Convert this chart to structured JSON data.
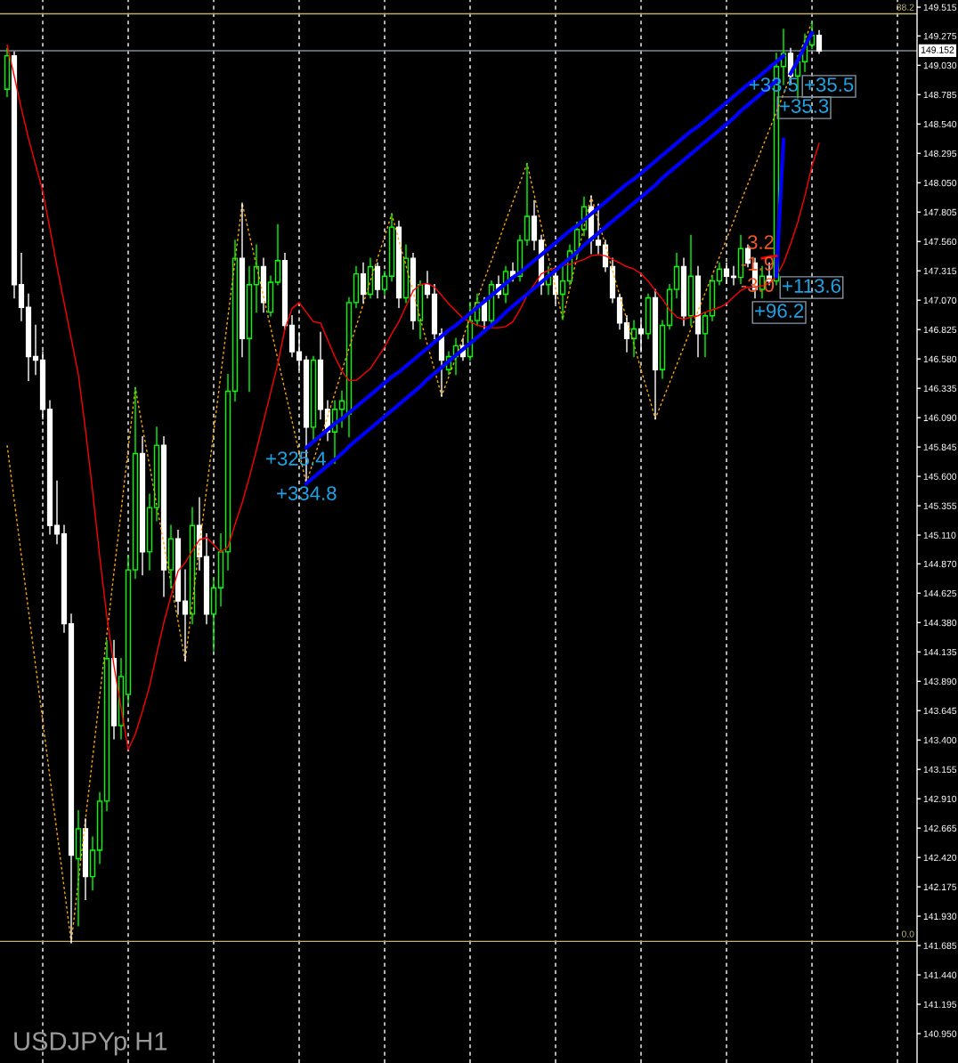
{
  "chart_data": {
    "type": "candlestick",
    "title": "USDJPYp H1",
    "categories": [
      null,
      null,
      null,
      null,
      null,
      null,
      null,
      null,
      null,
      null,
      null,
      null,
      null,
      null,
      null,
      null,
      null,
      null,
      null,
      null,
      null,
      null,
      null,
      null,
      null,
      null,
      null,
      null,
      null,
      null,
      null,
      null,
      null,
      null,
      null,
      null,
      null,
      null,
      null,
      null,
      null,
      null,
      null,
      null,
      null,
      null,
      null,
      null,
      null,
      null,
      null,
      null,
      null,
      null,
      null,
      null,
      null,
      null,
      null,
      null,
      null,
      null,
      null,
      null,
      null,
      null,
      null,
      null,
      null,
      null,
      null,
      null,
      null,
      null,
      null,
      null,
      null,
      null,
      null,
      null,
      null,
      null,
      null,
      null,
      null,
      null,
      null,
      null,
      null,
      null,
      null,
      null,
      null,
      null,
      null,
      null,
      null,
      null,
      null,
      null,
      null,
      null,
      null,
      null,
      null,
      null,
      null,
      null,
      null,
      null,
      null,
      null,
      null,
      null,
      null
    ],
    "ohlc": [
      [
        148.83,
        149.17,
        148.77,
        149.11
      ],
      [
        149.11,
        149.14,
        147.09,
        147.2
      ],
      [
        147.2,
        147.46,
        146.9,
        147.01
      ],
      [
        147.01,
        147.12,
        146.4,
        146.6
      ],
      [
        146.6,
        146.86,
        146.45,
        146.57
      ],
      [
        146.57,
        146.64,
        146.08,
        146.16
      ],
      [
        146.16,
        146.23,
        145.12,
        145.19
      ],
      [
        145.19,
        145.56,
        145.04,
        145.12
      ],
      [
        145.12,
        145.19,
        144.3,
        144.37
      ],
      [
        144.37,
        144.45,
        141.71,
        142.44
      ],
      [
        142.41,
        142.81,
        141.85,
        142.66
      ],
      [
        142.66,
        142.74,
        142.07,
        142.26
      ],
      [
        142.26,
        142.59,
        142.15,
        142.48
      ],
      [
        142.48,
        142.96,
        142.37,
        142.89
      ],
      [
        142.89,
        144.23,
        142.81,
        144.08
      ],
      [
        144.08,
        144.23,
        143.41,
        143.52
      ],
      [
        143.52,
        144.08,
        143.41,
        143.93
      ],
      [
        143.78,
        144.93,
        143.71,
        144.82
      ],
      [
        144.82,
        146.34,
        144.75,
        145.79
      ],
      [
        145.79,
        145.93,
        144.78,
        144.97
      ],
      [
        144.97,
        145.45,
        144.82,
        145.34
      ],
      [
        145.34,
        146.01,
        145.23,
        145.86
      ],
      [
        145.86,
        145.93,
        144.6,
        144.82
      ],
      [
        144.82,
        145.19,
        144.67,
        145.08
      ],
      [
        145.08,
        145.15,
        144.45,
        144.56
      ],
      [
        144.56,
        144.82,
        144.06,
        144.45
      ],
      [
        144.45,
        145.34,
        144.37,
        145.19
      ],
      [
        145.19,
        145.42,
        144.82,
        144.93
      ],
      [
        144.93,
        145.12,
        144.37,
        144.45
      ],
      [
        144.45,
        144.75,
        144.15,
        144.67
      ],
      [
        144.67,
        145.12,
        144.52,
        144.97
      ],
      [
        144.97,
        146.45,
        144.82,
        146.31
      ],
      [
        146.31,
        147.57,
        146.23,
        147.42
      ],
      [
        147.42,
        147.88,
        146.6,
        146.75
      ],
      [
        146.75,
        147.35,
        146.31,
        147.2
      ],
      [
        147.2,
        147.53,
        146.97,
        147.35
      ],
      [
        147.35,
        147.42,
        146.97,
        147.05
      ],
      [
        146.97,
        147.27,
        146.94,
        147.22
      ],
      [
        147.22,
        147.7,
        147.2,
        147.4
      ],
      [
        147.4,
        147.46,
        146.83,
        146.86
      ],
      [
        146.86,
        146.94,
        146.6,
        146.64
      ],
      [
        146.64,
        146.79,
        146.49,
        146.57
      ],
      [
        146.57,
        146.6,
        145.54,
        146.01
      ],
      [
        146.01,
        146.6,
        145.9,
        146.57
      ],
      [
        146.57,
        146.8,
        146.08,
        146.16
      ],
      [
        146.16,
        146.23,
        145.9,
        145.97
      ],
      [
        145.97,
        146.23,
        145.71,
        146.16
      ],
      [
        146.16,
        146.31,
        146.01,
        146.23
      ],
      [
        146.12,
        147.09,
        145.93,
        147.05
      ],
      [
        147.05,
        147.35,
        147.01,
        147.29
      ],
      [
        147.29,
        147.38,
        147.05,
        147.12
      ],
      [
        147.12,
        147.42,
        147.09,
        147.35
      ],
      [
        147.35,
        147.38,
        147.09,
        147.16
      ],
      [
        147.16,
        147.31,
        147.12,
        147.27
      ],
      [
        147.27,
        147.79,
        147.23,
        147.68
      ],
      [
        147.68,
        147.73,
        147.01,
        147.09
      ],
      [
        147.09,
        147.53,
        147.05,
        147.42
      ],
      [
        147.42,
        147.46,
        146.83,
        146.9
      ],
      [
        146.9,
        147.23,
        146.75,
        147.2
      ],
      [
        147.2,
        147.31,
        147.09,
        147.12
      ],
      [
        147.12,
        147.2,
        146.75,
        146.79
      ],
      [
        146.79,
        146.83,
        146.27,
        146.57
      ],
      [
        146.49,
        146.64,
        146.45,
        146.6
      ],
      [
        146.6,
        146.75,
        146.45,
        146.69
      ],
      [
        146.69,
        146.75,
        146.57,
        146.6
      ],
      [
        146.6,
        147.05,
        146.57,
        146.9
      ],
      [
        146.9,
        147.12,
        146.86,
        147.05
      ],
      [
        147.05,
        147.09,
        146.83,
        146.9
      ],
      [
        146.9,
        147.23,
        146.86,
        147.2
      ],
      [
        147.2,
        147.27,
        147.09,
        147.12
      ],
      [
        147.12,
        147.35,
        147.05,
        147.31
      ],
      [
        147.31,
        147.38,
        147.23,
        147.27
      ],
      [
        147.27,
        147.61,
        147.23,
        147.57
      ],
      [
        147.57,
        148.21,
        147.53,
        147.77
      ],
      [
        147.77,
        147.9,
        147.49,
        147.57
      ],
      [
        147.57,
        147.61,
        147.12,
        147.2
      ],
      [
        147.2,
        147.35,
        147.12,
        147.27
      ],
      [
        147.27,
        147.31,
        147.05,
        147.12
      ],
      [
        147.12,
        147.35,
        146.91,
        147.23
      ],
      [
        147.23,
        147.53,
        147.2,
        147.48
      ],
      [
        147.48,
        147.72,
        147.42,
        147.66
      ],
      [
        147.66,
        147.93,
        147.61,
        147.85
      ],
      [
        147.85,
        147.94,
        147.46,
        147.57
      ],
      [
        147.57,
        147.87,
        147.46,
        147.53
      ],
      [
        147.53,
        147.57,
        147.31,
        147.35
      ],
      [
        147.35,
        147.42,
        147.05,
        147.09
      ],
      [
        147.09,
        147.12,
        146.83,
        146.88
      ],
      [
        146.88,
        146.94,
        146.64,
        146.75
      ],
      [
        146.75,
        146.9,
        146.6,
        146.83
      ],
      [
        146.83,
        146.9,
        146.64,
        146.79
      ],
      [
        146.79,
        147.12,
        146.75,
        147.09
      ],
      [
        147.09,
        147.16,
        146.08,
        146.49
      ],
      [
        146.49,
        146.9,
        146.42,
        146.86
      ],
      [
        146.86,
        147.2,
        146.83,
        147.16
      ],
      [
        147.16,
        147.46,
        147.09,
        147.35
      ],
      [
        147.35,
        147.42,
        146.86,
        146.94
      ],
      [
        146.94,
        147.61,
        146.86,
        147.27
      ],
      [
        147.27,
        147.35,
        146.6,
        146.79
      ],
      [
        146.79,
        146.97,
        146.6,
        146.94
      ],
      [
        146.94,
        147.27,
        146.9,
        147.23
      ],
      [
        147.23,
        147.38,
        147.2,
        147.33
      ],
      [
        147.33,
        147.38,
        147.21,
        147.27
      ],
      [
        147.27,
        147.35,
        147.2,
        147.26
      ],
      [
        147.26,
        147.61,
        147.21,
        147.5
      ],
      [
        147.5,
        147.53,
        147.35,
        147.38
      ],
      [
        147.38,
        147.42,
        147.09,
        147.16
      ],
      [
        147.16,
        147.35,
        147.09,
        147.27
      ],
      [
        147.27,
        147.38,
        147.2,
        147.23
      ],
      [
        147.23,
        149.13,
        147.2,
        149.02
      ],
      [
        149.02,
        149.33,
        148.87,
        149.13
      ],
      [
        149.13,
        149.17,
        148.87,
        148.94
      ],
      [
        148.94,
        149.11,
        148.76,
        149.06
      ],
      [
        149.06,
        149.29,
        148.98,
        149.2
      ],
      [
        149.2,
        149.39,
        149.17,
        149.28
      ],
      [
        149.28,
        149.32,
        149.13,
        149.15
      ]
    ],
    "colors": [
      "#00ff00",
      "#ffffff",
      "#ffffff",
      "#ffffff",
      "#ffffff",
      "#ffffff",
      "#ffffff",
      "#ffffff",
      "#ffffff",
      "#ffffff",
      "#00ff00",
      "#ffffff",
      "#00ff00",
      "#00ff00",
      "#00ff00",
      "#ffffff",
      "#00ff00",
      "#00ff00",
      "#00ff00",
      "#ffffff",
      "#00ff00",
      "#00ff00",
      "#ffffff",
      "#00ff00",
      "#ffffff",
      "#ffffff",
      "#00ff00",
      "#ffffff",
      "#ffffff",
      "#00ff00",
      "#00ff00",
      "#00ff00",
      "#00ff00",
      "#ffffff",
      "#00ff00",
      "#00ff00",
      "#ffffff",
      "#00ff00",
      "#00ff00",
      "#ffffff",
      "#ffffff",
      "#ffffff",
      "#ffffff",
      "#00ff00",
      "#ffffff",
      "#ffffff",
      "#00ff00",
      "#00ff00",
      "#00ff00",
      "#00ff00",
      "#ffffff",
      "#00ff00",
      "#ffffff",
      "#00ff00",
      "#00ff00",
      "#ffffff",
      "#00ff00",
      "#ffffff",
      "#00ff00",
      "#ffffff",
      "#ffffff",
      "#ffffff",
      "#00ff00",
      "#00ff00",
      "#ffffff",
      "#00ff00",
      "#00ff00",
      "#ffffff",
      "#00ff00",
      "#ffffff",
      "#00ff00",
      "#ffffff",
      "#00ff00",
      "#00ff00",
      "#ffffff",
      "#ffffff",
      "#00ff00",
      "#ffffff",
      "#00ff00",
      "#00ff00",
      "#00ff00",
      "#00ff00",
      "#ffffff",
      "#ffffff",
      "#ffffff",
      "#ffffff",
      "#ffffff",
      "#ffffff",
      "#00ff00",
      "#ffffff",
      "#00ff00",
      "#ffffff",
      "#00ff00",
      "#00ff00",
      "#00ff00",
      "#ffffff",
      "#00ff00",
      "#ffffff",
      "#00ff00",
      "#00ff00",
      "#00ff00",
      "#ffffff",
      "#ffffff",
      "#00ff00",
      "#ffffff",
      "#ffffff",
      "#00ff00",
      "#ffffff",
      "#00ff00",
      "#00ff00",
      "#ffffff",
      "#00ff00",
      "#00ff00",
      "#00ff00",
      "#ffffff"
    ],
    "series": [
      {
        "type": "line",
        "color": "#ff0000",
        "values": [
          149.2,
          148.94,
          148.67,
          148.42,
          148.2,
          147.98,
          147.67,
          147.35,
          147.05,
          146.75,
          146.45,
          145.99,
          145.48,
          144.93,
          144.43,
          144.02,
          143.67,
          143.32,
          143.45,
          143.64,
          143.85,
          144.12,
          144.38,
          144.6,
          144.81,
          144.88,
          144.98,
          145.07,
          145.09,
          145.03,
          144.97,
          145.01,
          145.2,
          145.38,
          145.59,
          145.82,
          146.06,
          146.3,
          146.54,
          146.83,
          147.0,
          147.05,
          146.97,
          146.89,
          146.88,
          146.74,
          146.6,
          146.48,
          146.4,
          146.4,
          146.45,
          146.5,
          146.59,
          146.68,
          146.79,
          146.89,
          147.02,
          147.15,
          147.2,
          147.21,
          147.18,
          147.11,
          147.04,
          146.98,
          146.92,
          146.89,
          146.86,
          146.85,
          146.84,
          146.84,
          146.85,
          146.89,
          146.99,
          147.11,
          147.2,
          147.29,
          147.32,
          147.34,
          147.36,
          147.37,
          147.39,
          147.41,
          147.44,
          147.45,
          147.44,
          147.41,
          147.38,
          147.35,
          147.33,
          147.29,
          147.23,
          147.15,
          147.08,
          146.99,
          146.93,
          146.91,
          146.93,
          146.94,
          146.97,
          146.99,
          147.01,
          147.04,
          147.1,
          147.15,
          147.18,
          147.18,
          147.19,
          147.21,
          147.27,
          147.38,
          147.54,
          147.72,
          147.94,
          148.19,
          148.38
        ]
      },
      {
        "type": "line",
        "color": "#ffa500",
        "line_style": "dotted",
        "values": [
          145.86,
          145.4,
          144.94,
          144.48,
          144.02,
          143.56,
          143.09,
          142.63,
          142.17,
          141.71,
          142.22,
          142.74,
          143.25,
          143.77,
          144.28,
          144.8,
          145.31,
          145.83,
          146.34,
          146.01,
          145.69,
          145.36,
          145.04,
          144.71,
          144.39,
          144.06,
          144.54,
          145.02,
          145.49,
          145.97,
          146.45,
          146.93,
          147.4,
          147.88,
          147.62,
          147.36,
          147.1,
          146.84,
          146.58,
          146.32,
          146.06,
          145.8,
          145.54,
          145.73,
          145.92,
          146.1,
          146.29,
          146.48,
          146.67,
          146.85,
          147.04,
          147.23,
          147.42,
          147.6,
          147.79,
          147.57,
          147.36,
          147.14,
          146.92,
          146.7,
          146.49,
          146.27,
          146.43,
          146.59,
          146.76,
          146.92,
          147.08,
          147.24,
          147.4,
          147.56,
          147.73,
          147.89,
          148.05,
          148.21,
          147.95,
          147.69,
          147.43,
          147.17,
          146.91,
          147.17,
          147.43,
          147.68,
          147.94,
          147.73,
          147.53,
          147.32,
          147.11,
          146.91,
          146.7,
          146.49,
          146.29,
          146.08,
          146.23,
          146.38,
          146.53,
          146.68,
          146.83,
          146.98,
          147.13,
          147.28,
          147.43,
          147.58,
          147.73,
          147.89,
          148.04,
          148.19,
          148.34,
          148.49,
          148.64,
          148.79,
          148.94,
          149.09,
          149.24,
          149.39,
          null
        ]
      },
      {
        "type": "line",
        "color": "#0000ff",
        "values": [
          null,
          null,
          null,
          null,
          null,
          null,
          null,
          null,
          null,
          null,
          null,
          null,
          null,
          null,
          null,
          null,
          null,
          null,
          null,
          null,
          null,
          null,
          null,
          null,
          null,
          null,
          null,
          null,
          null,
          null,
          null,
          null,
          null,
          null,
          null,
          null,
          null,
          null,
          null,
          null,
          null,
          null,
          145.84,
          145.89,
          145.94,
          145.99,
          146.04,
          146.08,
          146.13,
          146.18,
          146.23,
          146.28,
          146.33,
          146.38,
          146.43,
          146.47,
          146.52,
          146.57,
          146.62,
          146.67,
          146.72,
          146.77,
          146.82,
          146.86,
          146.91,
          146.96,
          147.01,
          147.06,
          147.11,
          147.16,
          147.21,
          147.26,
          147.3,
          147.35,
          147.4,
          147.45,
          147.5,
          147.55,
          147.6,
          147.65,
          147.69,
          147.74,
          147.79,
          147.84,
          147.89,
          147.94,
          147.99,
          148.04,
          148.08,
          148.13,
          148.18,
          148.23,
          148.28,
          148.33,
          148.38,
          148.43,
          148.48,
          148.52,
          148.57,
          148.62,
          148.67,
          148.72,
          148.77,
          148.82,
          148.87,
          148.91,
          148.96,
          149.01,
          149.06,
          149.11,
          null,
          null,
          null,
          null,
          null
        ]
      },
      {
        "type": "line",
        "color": "#0000ff",
        "values": [
          null,
          null,
          null,
          null,
          null,
          null,
          null,
          null,
          null,
          null,
          null,
          null,
          null,
          null,
          null,
          null,
          null,
          null,
          null,
          null,
          null,
          null,
          null,
          null,
          null,
          null,
          null,
          null,
          null,
          null,
          null,
          null,
          null,
          null,
          null,
          null,
          null,
          null,
          null,
          null,
          null,
          null,
          145.54,
          145.59,
          145.64,
          145.69,
          145.74,
          145.79,
          145.85,
          145.9,
          145.95,
          146.0,
          146.05,
          146.1,
          146.15,
          146.2,
          146.25,
          146.3,
          146.35,
          146.41,
          146.46,
          146.51,
          146.56,
          146.61,
          146.66,
          146.71,
          146.76,
          146.81,
          146.86,
          146.91,
          146.97,
          147.02,
          147.07,
          147.12,
          147.17,
          147.22,
          147.27,
          147.32,
          147.37,
          147.42,
          147.47,
          147.53,
          147.58,
          147.63,
          147.68,
          147.73,
          147.78,
          147.83,
          147.88,
          147.93,
          147.98,
          148.03,
          148.09,
          148.14,
          148.19,
          148.24,
          148.29,
          148.34,
          148.39,
          148.44,
          148.49,
          148.54,
          148.59,
          148.65,
          148.7,
          148.75,
          148.8,
          148.85,
          148.9,
          null,
          null,
          null,
          null,
          null,
          null
        ]
      },
      {
        "type": "line",
        "color": "#0000ff",
        "values": [
          null,
          null,
          null,
          null,
          null,
          null,
          null,
          null,
          null,
          null,
          null,
          null,
          null,
          null,
          null,
          null,
          null,
          null,
          null,
          null,
          null,
          null,
          null,
          null,
          null,
          null,
          null,
          null,
          null,
          null,
          null,
          null,
          null,
          null,
          null,
          null,
          null,
          null,
          null,
          null,
          null,
          null,
          null,
          null,
          null,
          null,
          null,
          null,
          null,
          null,
          null,
          null,
          null,
          null,
          null,
          null,
          null,
          null,
          null,
          null,
          null,
          null,
          null,
          null,
          null,
          null,
          null,
          null,
          null,
          null,
          null,
          null,
          null,
          null,
          null,
          null,
          null,
          null,
          null,
          null,
          null,
          null,
          null,
          null,
          null,
          null,
          null,
          null,
          null,
          null,
          null,
          null,
          null,
          null,
          null,
          null,
          null,
          null,
          null,
          null,
          null,
          null,
          null,
          null,
          null,
          null,
          null,
          null,
          147.27,
          148.41,
          null,
          null,
          null,
          null,
          null
        ]
      },
      {
        "type": "line",
        "color": "#0000ff",
        "values": [
          null,
          null,
          null,
          null,
          null,
          null,
          null,
          null,
          null,
          null,
          null,
          null,
          null,
          null,
          null,
          null,
          null,
          null,
          null,
          null,
          null,
          null,
          null,
          null,
          null,
          null,
          null,
          null,
          null,
          null,
          null,
          null,
          null,
          null,
          null,
          null,
          null,
          null,
          null,
          null,
          null,
          null,
          null,
          null,
          null,
          null,
          null,
          null,
          null,
          null,
          null,
          null,
          null,
          null,
          null,
          null,
          null,
          null,
          null,
          null,
          null,
          null,
          null,
          null,
          null,
          null,
          null,
          null,
          null,
          null,
          null,
          null,
          null,
          null,
          null,
          null,
          null,
          null,
          null,
          null,
          null,
          null,
          null,
          null,
          null,
          null,
          null,
          null,
          null,
          null,
          null,
          null,
          null,
          null,
          null,
          null,
          null,
          null,
          null,
          null,
          null,
          null,
          null,
          null,
          null,
          null,
          null,
          null,
          null,
          null,
          148.96,
          149.07,
          149.19,
          149.3,
          null
        ]
      },
      {
        "type": "line",
        "color": "#ff0000",
        "values": [
          null,
          null,
          null,
          null,
          null,
          null,
          null,
          null,
          null,
          null,
          null,
          null,
          null,
          null,
          null,
          null,
          null,
          null,
          null,
          null,
          null,
          null,
          null,
          null,
          null,
          null,
          null,
          null,
          null,
          null,
          null,
          null,
          null,
          null,
          null,
          null,
          null,
          null,
          null,
          null,
          null,
          null,
          null,
          null,
          null,
          null,
          null,
          null,
          null,
          null,
          null,
          null,
          null,
          null,
          null,
          null,
          null,
          null,
          null,
          null,
          null,
          null,
          null,
          null,
          null,
          null,
          null,
          null,
          null,
          null,
          null,
          null,
          null,
          null,
          null,
          null,
          null,
          null,
          null,
          null,
          null,
          null,
          null,
          null,
          null,
          null,
          null,
          null,
          null,
          null,
          null,
          null,
          null,
          null,
          null,
          null,
          null,
          null,
          null,
          null,
          null,
          null,
          null,
          null,
          null,
          null,
          147.42,
          147.43,
          147.44,
          null,
          null,
          null,
          null,
          null,
          null
        ]
      }
    ],
    "ylim": [
      140.705,
      149.575
    ],
    "yticks": [
      {
        "value": 140.95,
        "label": "140.950"
      },
      141.195,
      {
        "value": 141.44,
        "label": "141.440"
      },
      141.685,
      {
        "value": 141.93,
        "label": "141.930"
      },
      142.175,
      {
        "value": 142.42,
        "label": "142.420"
      },
      142.665,
      {
        "value": 142.91,
        "label": "142.910"
      },
      143.155,
      {
        "value": 143.4,
        "label": "143.400"
      },
      143.645,
      {
        "value": 143.89,
        "label": "143.890"
      },
      144.135,
      {
        "value": 144.38,
        "label": "144.380"
      },
      144.625,
      {
        "value": 144.87,
        "label": "144.870"
      },
      {
        "value": 145.11,
        "label": "145.110"
      },
      145.355,
      {
        "value": 145.6,
        "label": "145.600"
      },
      145.845,
      {
        "value": 146.09,
        "label": "146.090"
      },
      146.335,
      {
        "value": 146.58,
        "label": "146.580"
      },
      146.825,
      {
        "value": 147.07,
        "label": "147.070"
      },
      147.315,
      {
        "value": 147.56,
        "label": "147.560"
      },
      147.805,
      {
        "value": 148.05,
        "label": "148.050"
      },
      148.295,
      {
        "value": 148.54,
        "label": "148.540"
      },
      148.785,
      {
        "value": 149.03,
        "label": "149.030"
      },
      149.275,
      149.515
    ],
    "tick_labels": "y",
    "grid": "x",
    "ref_lines": [
      {
        "axis": "y",
        "value": 149.46,
        "color": "#bdb070"
      },
      {
        "axis": "y",
        "value": 141.72,
        "color": "#bdb070"
      },
      {
        "axis": "y",
        "value": 149.152,
        "label": "149.152",
        "color": "#7d8c99"
      }
    ],
    "annotations": [
      "+325.4",
      "+334.8",
      "+33.5",
      "+35.5",
      "+35.3",
      "+113.6",
      "+96.2",
      "3.2",
      "-1.9",
      "-3.0",
      "38.2",
      "0.0"
    ]
  }
}
